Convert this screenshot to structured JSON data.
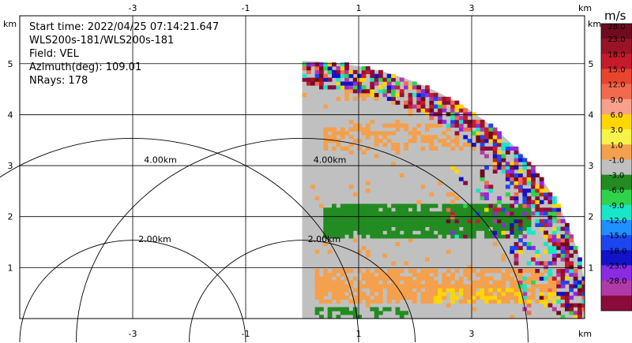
{
  "chart_data": {
    "type": "heatmap",
    "title_lines": [
      "Start time: 2022/04/25 07:14:21.647",
      "WLS200s-181/WLS200s-181",
      "Field: VEL",
      "Azimuth(deg): 109.01",
      "NRays: 178"
    ],
    "field": "VEL",
    "unit": "m/s",
    "axis_unit": "km",
    "x_ticks": [
      "-3",
      "-1",
      "1",
      "3"
    ],
    "x_tick_values": [
      -3,
      -1,
      1,
      3
    ],
    "y_ticks": [
      "1",
      "2",
      "3",
      "4",
      "5"
    ],
    "y_tick_values": [
      1,
      2,
      3,
      4,
      5
    ],
    "grid": true,
    "xlim": [
      -5.0,
      5.0
    ],
    "ylim": [
      0.0,
      5.94
    ],
    "radar_origin_km": [
      0.0,
      0.0
    ],
    "max_range_km": 5.05,
    "sector_azimuth_deg": [
      0,
      90
    ],
    "range_rings": [
      {
        "label": "2.00km",
        "radius_km": 2.0
      },
      {
        "label": "4.00km",
        "radius_km": 4.0
      }
    ],
    "colorbar": {
      "labels": [
        "28.0",
        "23.0",
        "18.0",
        "15.0",
        "12.0",
        "9.0",
        "6.0",
        "3.0",
        "1.0",
        "-1.0",
        "-3.0",
        "-6.0",
        "-9.0",
        "-12.0",
        "-15.0",
        "-18.0",
        "-23.0",
        "-28.0"
      ],
      "colors": [
        "#6e0b1e",
        "#9a1327",
        "#c51c2c",
        "#e8452e",
        "#f26a4e",
        "#f7a08c",
        "#ffd600",
        "#f7f34a",
        "#f4a04c",
        "#c0c0c0",
        "#228b22",
        "#2fd34a",
        "#19e6c8",
        "#1e90ff",
        "#1e46f0",
        "#1212c8",
        "#8a2be2",
        "#b03aa8",
        "#8b0a3c"
      ]
    },
    "bands": [
      {
        "kind": "gray-speckle",
        "y_km": [
          0.5,
          4.7
        ],
        "x_km": [
          0.0,
          5.0
        ]
      },
      {
        "kind": "positive-orange",
        "y_km": [
          0.25,
          0.95
        ],
        "x_km": [
          0.2,
          4.7
        ]
      },
      {
        "kind": "negative-green",
        "y_km": [
          1.55,
          2.25
        ],
        "x_km": [
          0.3,
          4.0
        ]
      },
      {
        "kind": "positive-orange-sparse",
        "y_km": [
          3.3,
          3.8
        ],
        "x_km": [
          0.35,
          3.2
        ]
      },
      {
        "kind": "positive-orange-sparse",
        "y_km": [
          4.2,
          4.6
        ],
        "x_km": [
          0.4,
          2.3
        ]
      },
      {
        "kind": "noise",
        "r_km": [
          4.55,
          5.05
        ]
      }
    ]
  }
}
